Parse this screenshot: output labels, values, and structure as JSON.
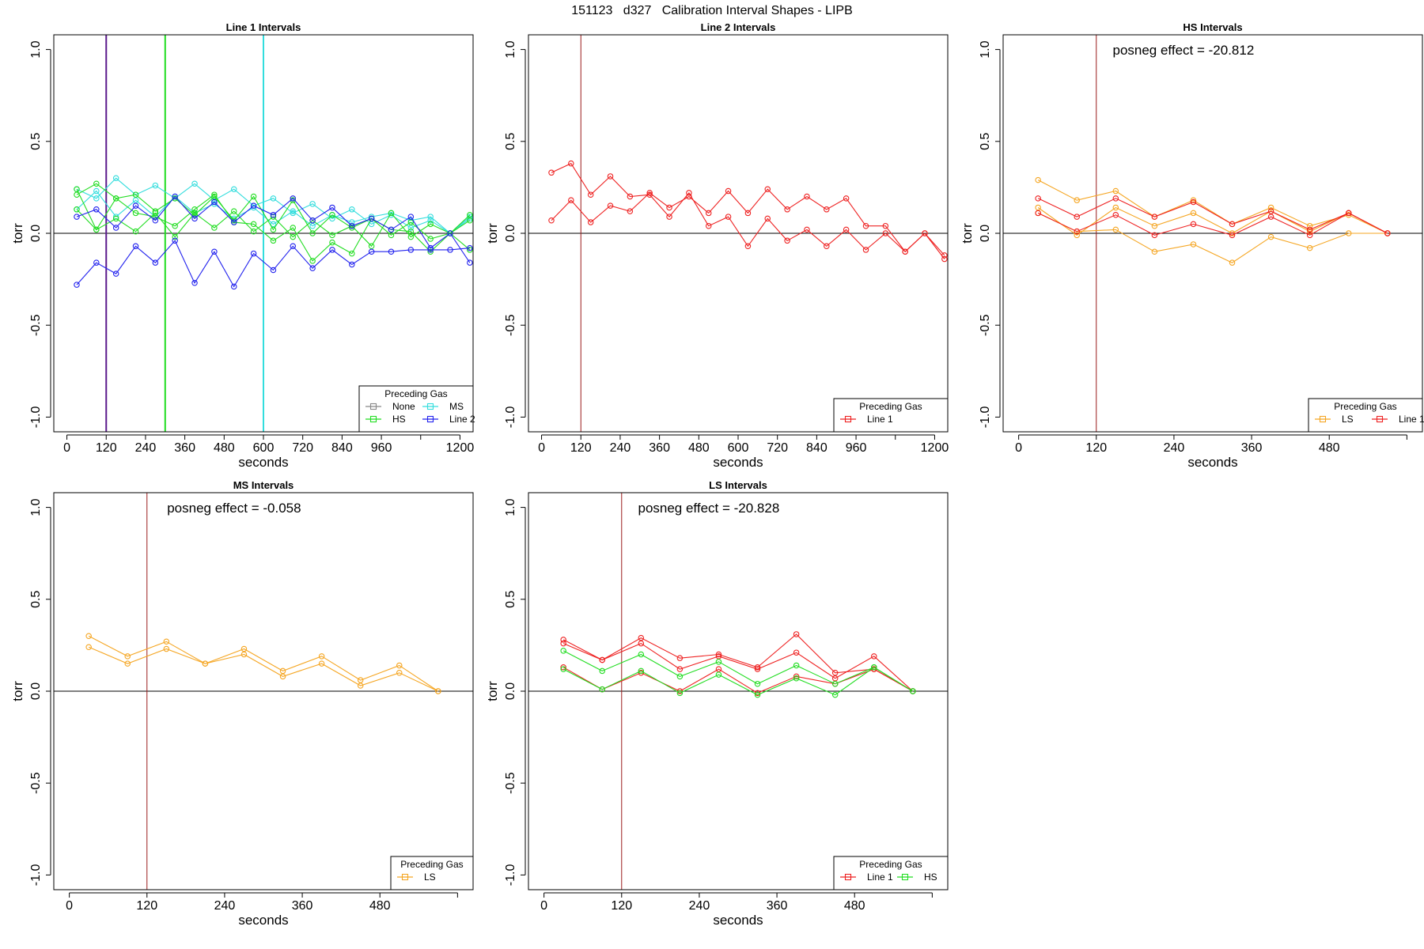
{
  "figure": {
    "title": "151123   d327   Calibration Interval Shapes - LIPB"
  },
  "colors": {
    "none": "#888888",
    "hs": "#22dd22",
    "ms": "#33dddd",
    "line2": "#2222ee",
    "line1": "#ee2222",
    "ls": "#f5a623",
    "purple_marker": "#5b1a8c",
    "marker_dark_red": "#9b1b1b"
  },
  "chart_data": [
    {
      "id": "line1",
      "type": "line",
      "title": "Line 1 Intervals",
      "xlabel": "seconds",
      "ylabel": "torr",
      "xlim": [
        -40,
        1240
      ],
      "ylim": [
        -1.08,
        1.08
      ],
      "xticks": [
        "0",
        "120",
        "240",
        "360",
        "480",
        "600",
        "720",
        "840",
        "960",
        "1200"
      ],
      "xtick_values": [
        0,
        120,
        240,
        360,
        480,
        600,
        720,
        840,
        960,
        1200
      ],
      "extra_ticks": [
        1080
      ],
      "yticks": [
        "-1.0",
        "-0.5",
        "0.0",
        "0.5",
        "1.0"
      ],
      "ytick_values": [
        -1.0,
        -0.5,
        0.0,
        0.5,
        1.0
      ],
      "vlines": [
        {
          "x": 120,
          "color": "#5b1a8c"
        },
        {
          "x": 300,
          "color": "#22dd22"
        },
        {
          "x": 600,
          "color": "#33dddd"
        }
      ],
      "zero_line": true,
      "legend": {
        "title": "Preceding Gas",
        "position": "bottom-right",
        "columns": 2,
        "entries": [
          {
            "label": "None",
            "color": "#888888"
          },
          {
            "label": "MS",
            "color": "#33dddd"
          },
          {
            "label": "HS",
            "color": "#22dd22"
          },
          {
            "label": "Line 2",
            "color": "#2222ee"
          }
        ]
      },
      "series": [
        {
          "color": "#33dddd",
          "x": [
            30,
            90,
            150,
            210,
            270,
            330,
            390,
            450,
            510,
            570,
            630,
            690,
            750,
            810,
            870,
            930,
            990,
            1050,
            1110,
            1170,
            1230
          ],
          "y": [
            0.24,
            0.19,
            0.3,
            0.21,
            0.26,
            0.19,
            0.27,
            0.18,
            0.24,
            0.15,
            0.19,
            0.11,
            0.16,
            0.08,
            0.13,
            0.05,
            0.1,
            0.03,
            0.07,
            0.0,
            0.09
          ]
        },
        {
          "color": "#33dddd",
          "x": [
            30,
            90,
            150,
            210,
            270,
            330,
            390,
            450,
            510,
            570,
            630,
            690,
            750,
            810,
            870,
            930,
            990,
            1050,
            1110,
            1170,
            1230
          ],
          "y": [
            0.13,
            0.23,
            0.09,
            0.18,
            0.09,
            0.2,
            0.11,
            0.16,
            0.08,
            0.14,
            0.05,
            0.12,
            0.04,
            0.1,
            0.06,
            0.09,
            0.11,
            0.07,
            0.09,
            0.0,
            0.08
          ]
        },
        {
          "color": "#22dd22",
          "x": [
            30,
            90,
            150,
            210,
            270,
            330,
            390,
            450,
            510,
            570,
            630,
            690,
            750,
            810,
            870,
            930,
            990,
            1050,
            1110,
            1170,
            1230
          ],
          "y": [
            0.21,
            0.27,
            0.19,
            0.21,
            0.12,
            0.19,
            0.1,
            0.2,
            0.07,
            0.2,
            0.02,
            0.18,
            0.0,
            0.1,
            0.03,
            0.08,
            -0.01,
            0.06,
            -0.03,
            0.0,
            0.07
          ]
        },
        {
          "color": "#22dd22",
          "x": [
            30,
            90,
            150,
            210,
            270,
            330,
            390,
            450,
            510,
            570,
            630,
            690,
            750,
            810,
            870,
            930,
            990,
            1050,
            1110,
            1170,
            1230
          ],
          "y": [
            0.13,
            0.02,
            0.08,
            0.01,
            0.11,
            -0.02,
            0.11,
            0.03,
            0.12,
            0.01,
            0.09,
            -0.02,
            0.07,
            -0.01,
            0.04,
            -0.07,
            0.11,
            -0.02,
            0.05,
            0.0,
            0.1
          ]
        },
        {
          "color": "#22dd22",
          "x": [
            30,
            90,
            150,
            210,
            270,
            330,
            390,
            450,
            510,
            570,
            630,
            690,
            750,
            810,
            870,
            930,
            990,
            1050,
            1110,
            1170,
            1230
          ],
          "y": [
            0.24,
            0.02,
            0.19,
            0.11,
            0.09,
            0.04,
            0.13,
            0.21,
            0.06,
            0.05,
            -0.04,
            0.03,
            -0.15,
            -0.05,
            -0.11,
            0.08,
            0.02,
            0.01,
            -0.1,
            0.0,
            -0.09
          ]
        },
        {
          "color": "#2222ee",
          "x": [
            30,
            90,
            150,
            210,
            270,
            330,
            390,
            450,
            510,
            570,
            630,
            690,
            750,
            810,
            870,
            930,
            990,
            1050,
            1110,
            1170,
            1230
          ],
          "y": [
            0.09,
            0.13,
            0.03,
            0.15,
            0.07,
            0.2,
            0.08,
            0.17,
            0.06,
            0.15,
            0.1,
            0.19,
            0.07,
            0.14,
            0.04,
            0.08,
            0.02,
            0.09,
            -0.08,
            0.0,
            -0.16
          ]
        },
        {
          "color": "#2222ee",
          "x": [
            30,
            90,
            150,
            210,
            270,
            330,
            390,
            450,
            510,
            570,
            630,
            690,
            750,
            810,
            870,
            930,
            990,
            1050,
            1110,
            1170,
            1230
          ],
          "y": [
            -0.28,
            -0.16,
            -0.22,
            -0.07,
            -0.16,
            -0.04,
            -0.27,
            -0.1,
            -0.29,
            -0.11,
            -0.2,
            -0.07,
            -0.19,
            -0.09,
            -0.17,
            -0.1,
            -0.1,
            -0.09,
            -0.09,
            -0.09,
            -0.08
          ]
        }
      ]
    },
    {
      "id": "line2",
      "type": "line",
      "title": "Line 2 Intervals",
      "xlabel": "seconds",
      "ylabel": "torr",
      "xlim": [
        -40,
        1240
      ],
      "ylim": [
        -1.08,
        1.08
      ],
      "xticks": [
        "0",
        "120",
        "240",
        "360",
        "480",
        "600",
        "720",
        "840",
        "960",
        "1200"
      ],
      "xtick_values": [
        0,
        120,
        240,
        360,
        480,
        600,
        720,
        840,
        960,
        1200
      ],
      "extra_ticks": [
        1080
      ],
      "yticks": [
        "-1.0",
        "-0.5",
        "0.0",
        "0.5",
        "1.0"
      ],
      "ytick_values": [
        -1.0,
        -0.5,
        0.0,
        0.5,
        1.0
      ],
      "vlines": [
        {
          "x": 120,
          "color": "#9b1b1b"
        }
      ],
      "zero_line": true,
      "legend": {
        "title": "Preceding Gas",
        "position": "bottom-right",
        "columns": 1,
        "entries": [
          {
            "label": "Line 1",
            "color": "#ee2222"
          }
        ]
      },
      "series": [
        {
          "color": "#ee2222",
          "x": [
            30,
            90,
            150,
            210,
            270,
            330,
            390,
            450,
            510,
            570,
            630,
            690,
            750,
            810,
            870,
            930,
            990,
            1050,
            1110,
            1170,
            1230
          ],
          "y": [
            0.33,
            0.38,
            0.21,
            0.31,
            0.2,
            0.21,
            0.09,
            0.22,
            0.04,
            0.09,
            -0.07,
            0.08,
            -0.04,
            0.02,
            -0.07,
            0.02,
            -0.09,
            0.0,
            -0.1,
            0.0,
            -0.12
          ]
        },
        {
          "color": "#ee2222",
          "x": [
            30,
            90,
            150,
            210,
            270,
            330,
            390,
            450,
            510,
            570,
            630,
            690,
            750,
            810,
            870,
            930,
            990,
            1050,
            1110,
            1170,
            1230
          ],
          "y": [
            0.07,
            0.18,
            0.06,
            0.15,
            0.12,
            0.22,
            0.14,
            0.2,
            0.11,
            0.23,
            0.11,
            0.24,
            0.13,
            0.2,
            0.13,
            0.19,
            0.04,
            0.04,
            -0.1,
            0.0,
            -0.14
          ]
        }
      ]
    },
    {
      "id": "hs",
      "type": "line",
      "title": "HS Intervals",
      "annotation": "posneg effect = -20.812",
      "xlabel": "seconds",
      "ylabel": "torr",
      "xlim": [
        -24,
        624
      ],
      "ylim": [
        -1.08,
        1.08
      ],
      "xticks": [
        "0",
        "120",
        "240",
        "360",
        "480"
      ],
      "xtick_values": [
        0,
        120,
        240,
        360,
        480
      ],
      "extra_ticks": [
        600
      ],
      "yticks": [
        "-1.0",
        "-0.5",
        "0.0",
        "0.5",
        "1.0"
      ],
      "ytick_values": [
        -1.0,
        -0.5,
        0.0,
        0.5,
        1.0
      ],
      "vlines": [
        {
          "x": 120,
          "color": "#9b1b1b"
        }
      ],
      "zero_line": true,
      "legend": {
        "title": "Preceding Gas",
        "position": "bottom-right",
        "columns": 2,
        "entries": [
          {
            "label": "LS",
            "color": "#f5a623"
          },
          {
            "label": "Line 1",
            "color": "#ee2222"
          }
        ]
      },
      "series": [
        {
          "color": "#f5a623",
          "x": [
            30,
            90,
            150,
            210,
            270,
            330,
            390,
            450,
            510,
            570
          ],
          "y": [
            0.29,
            0.18,
            0.23,
            0.09,
            0.18,
            0.05,
            0.14,
            0.04,
            0.1,
            0.0
          ]
        },
        {
          "color": "#f5a623",
          "x": [
            30,
            90,
            150,
            210,
            270,
            330,
            390,
            450,
            510,
            570
          ],
          "y": [
            0.14,
            -0.01,
            0.14,
            0.04,
            0.11,
            0.0,
            0.12,
            0.01,
            0.11,
            0.0
          ]
        },
        {
          "color": "#f5a623",
          "x": [
            30,
            90,
            150,
            210,
            270,
            330,
            390,
            450,
            510,
            570
          ],
          "y": [
            0.11,
            0.01,
            0.02,
            -0.1,
            -0.06,
            -0.16,
            -0.02,
            -0.08,
            0.0,
            0.0
          ]
        },
        {
          "color": "#ee2222",
          "x": [
            30,
            90,
            150,
            210,
            270,
            330,
            390,
            450,
            510,
            570
          ],
          "y": [
            0.19,
            0.09,
            0.19,
            0.09,
            0.17,
            0.05,
            0.12,
            0.02,
            0.11,
            0.0
          ]
        },
        {
          "color": "#ee2222",
          "x": [
            30,
            90,
            150,
            210,
            270,
            330,
            390,
            450,
            510,
            570
          ],
          "y": [
            0.11,
            0.01,
            0.1,
            -0.01,
            0.05,
            -0.01,
            0.09,
            -0.01,
            0.11,
            0.0
          ]
        }
      ]
    },
    {
      "id": "ms",
      "type": "line",
      "title": "MS Intervals",
      "annotation": "posneg effect = -0.058",
      "xlabel": "seconds",
      "ylabel": "torr",
      "xlim": [
        -24,
        624
      ],
      "ylim": [
        -1.08,
        1.08
      ],
      "xticks": [
        "0",
        "120",
        "240",
        "360",
        "480"
      ],
      "xtick_values": [
        0,
        120,
        240,
        360,
        480
      ],
      "extra_ticks": [
        600
      ],
      "yticks": [
        "-1.0",
        "-0.5",
        "0.0",
        "0.5",
        "1.0"
      ],
      "ytick_values": [
        -1.0,
        -0.5,
        0.0,
        0.5,
        1.0
      ],
      "vlines": [
        {
          "x": 120,
          "color": "#9b1b1b"
        }
      ],
      "zero_line": true,
      "legend": {
        "title": "Preceding Gas",
        "position": "bottom-right",
        "columns": 1,
        "entries": [
          {
            "label": "LS",
            "color": "#f5a623"
          }
        ]
      },
      "series": [
        {
          "color": "#f5a623",
          "x": [
            30,
            90,
            150,
            210,
            270,
            330,
            390,
            450,
            510,
            570
          ],
          "y": [
            0.3,
            0.19,
            0.27,
            0.15,
            0.23,
            0.11,
            0.19,
            0.06,
            0.14,
            0.0
          ]
        },
        {
          "color": "#f5a623",
          "x": [
            30,
            90,
            150,
            210,
            270,
            330,
            390,
            450,
            510,
            570
          ],
          "y": [
            0.24,
            0.15,
            0.23,
            0.15,
            0.2,
            0.08,
            0.15,
            0.03,
            0.1,
            0.0
          ]
        }
      ]
    },
    {
      "id": "ls",
      "type": "line",
      "title": "LS Intervals",
      "annotation": "posneg effect = -20.828",
      "xlabel": "seconds",
      "ylabel": "torr",
      "xlim": [
        -24,
        624
      ],
      "ylim": [
        -1.08,
        1.08
      ],
      "xticks": [
        "0",
        "120",
        "240",
        "360",
        "480"
      ],
      "xtick_values": [
        0,
        120,
        240,
        360,
        480
      ],
      "extra_ticks": [
        600
      ],
      "yticks": [
        "-1.0",
        "-0.5",
        "0.0",
        "0.5",
        "1.0"
      ],
      "ytick_values": [
        -1.0,
        -0.5,
        0.0,
        0.5,
        1.0
      ],
      "vlines": [
        {
          "x": 120,
          "color": "#9b1b1b"
        }
      ],
      "zero_line": true,
      "legend": {
        "title": "Preceding Gas",
        "position": "bottom-right",
        "columns": 2,
        "entries": [
          {
            "label": "Line 1",
            "color": "#ee2222"
          },
          {
            "label": "HS",
            "color": "#22dd22"
          }
        ]
      },
      "series": [
        {
          "color": "#ee2222",
          "x": [
            30,
            90,
            150,
            210,
            270,
            330,
            390,
            450,
            510,
            570
          ],
          "y": [
            0.28,
            0.17,
            0.29,
            0.18,
            0.2,
            0.13,
            0.31,
            0.1,
            0.12,
            0.0
          ]
        },
        {
          "color": "#ee2222",
          "x": [
            30,
            90,
            150,
            210,
            270,
            330,
            390,
            450,
            510,
            570
          ],
          "y": [
            0.26,
            0.17,
            0.26,
            0.12,
            0.19,
            0.12,
            0.21,
            0.07,
            0.19,
            0.0
          ]
        },
        {
          "color": "#ee2222",
          "x": [
            30,
            90,
            150,
            210,
            270,
            330,
            390,
            450,
            510,
            570
          ],
          "y": [
            0.13,
            0.01,
            0.1,
            0.0,
            0.12,
            -0.01,
            0.08,
            0.04,
            0.12,
            0.0
          ]
        },
        {
          "color": "#22dd22",
          "x": [
            30,
            90,
            150,
            210,
            270,
            330,
            390,
            450,
            510,
            570
          ],
          "y": [
            0.22,
            0.11,
            0.2,
            0.08,
            0.16,
            0.04,
            0.14,
            0.04,
            0.13,
            0.0
          ]
        },
        {
          "color": "#22dd22",
          "x": [
            30,
            90,
            150,
            210,
            270,
            330,
            390,
            450,
            510,
            570
          ],
          "y": [
            0.12,
            0.01,
            0.11,
            -0.01,
            0.09,
            -0.02,
            0.07,
            -0.02,
            0.13,
            0.0
          ]
        }
      ]
    }
  ]
}
